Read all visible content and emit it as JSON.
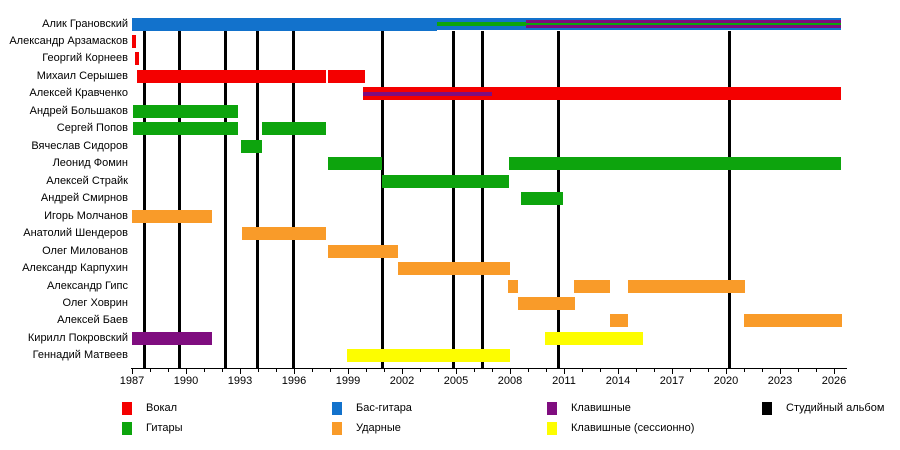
{
  "chart_data": {
    "type": "timeline",
    "title": "",
    "x_axis": {
      "min": 1987,
      "max": 2026.6,
      "major_ticks": [
        1987,
        1990,
        1993,
        1996,
        1999,
        2002,
        2005,
        2008,
        2011,
        2014,
        2017,
        2020,
        2023,
        2026
      ],
      "minor_tick_interval": 1,
      "minor_tick_last": 2026
    },
    "colors": {
      "vocals": "#f40000",
      "guitars": "#0da40d",
      "bass": "#1272cc",
      "drums": "#f99b29",
      "keyboards": "#7f0d7f",
      "keyboards_session": "#fdfd00",
      "album": "#000000"
    },
    "albums": [
      1987.72,
      1989.63,
      1992.17,
      1993.98,
      1995.96,
      2000.89,
      2004.85,
      2006.48,
      2010.67,
      2020.17
    ],
    "members": [
      {
        "name": "Алик Грановский",
        "segments": [
          {
            "start": 1987.0,
            "end": 2003.95,
            "stripes": [
              "bass"
            ]
          },
          {
            "start": 2003.95,
            "end": 2008.9,
            "stripes": [
              "bass",
              "guitars",
              "bass"
            ]
          },
          {
            "start": 2008.9,
            "end": 2026.4,
            "stripes": [
              "bass",
              "keyboards",
              "guitars",
              "keyboards",
              "bass"
            ]
          }
        ]
      },
      {
        "name": "Александр Арзамасков",
        "segments": [
          {
            "start": 1987.0,
            "end": 1987.22,
            "stripes": [
              "vocals"
            ]
          }
        ]
      },
      {
        "name": "Георгий Корнеев",
        "segments": [
          {
            "start": 1987.15,
            "end": 1987.38,
            "stripes": [
              "vocals"
            ]
          }
        ]
      },
      {
        "name": "Михаил Серышев",
        "segments": [
          {
            "start": 1987.3,
            "end": 1997.76,
            "stripes": [
              "vocals"
            ]
          },
          {
            "start": 1997.91,
            "end": 1999.94,
            "stripes": [
              "vocals"
            ]
          }
        ]
      },
      {
        "name": "Алексей Кравченко",
        "segments": [
          {
            "start": 1999.82,
            "end": 2006.98,
            "stripes": [
              "vocals",
              "keyboards",
              "vocals"
            ]
          },
          {
            "start": 2006.98,
            "end": 2026.4,
            "stripes": [
              "vocals"
            ]
          }
        ]
      },
      {
        "name": "Андрей Большаков",
        "segments": [
          {
            "start": 1987.03,
            "end": 1992.9,
            "stripes": [
              "guitars"
            ]
          }
        ]
      },
      {
        "name": "Сергей Попов",
        "segments": [
          {
            "start": 1987.05,
            "end": 1992.9,
            "stripes": [
              "guitars"
            ]
          },
          {
            "start": 1994.2,
            "end": 1997.8,
            "stripes": [
              "guitars"
            ]
          }
        ]
      },
      {
        "name": "Вячеслав Сидоров",
        "segments": [
          {
            "start": 1993.06,
            "end": 1994.2,
            "stripes": [
              "guitars"
            ]
          }
        ]
      },
      {
        "name": "Леонид Фомин",
        "segments": [
          {
            "start": 1997.91,
            "end": 2000.89,
            "stripes": [
              "guitars"
            ]
          },
          {
            "start": 2007.96,
            "end": 2026.37,
            "stripes": [
              "guitars"
            ]
          }
        ]
      },
      {
        "name": "Алексей Страйк",
        "segments": [
          {
            "start": 2000.89,
            "end": 2007.96,
            "stripes": [
              "guitars"
            ]
          }
        ]
      },
      {
        "name": "Андрей Смирнов",
        "segments": [
          {
            "start": 2008.6,
            "end": 2010.96,
            "stripes": [
              "guitars"
            ]
          }
        ]
      },
      {
        "name": "Игорь Молчанов",
        "segments": [
          {
            "start": 1987.0,
            "end": 1991.43,
            "stripes": [
              "drums"
            ]
          }
        ]
      },
      {
        "name": "Анатолий Шендеров",
        "segments": [
          {
            "start": 1993.11,
            "end": 1997.76,
            "stripes": [
              "drums"
            ]
          }
        ]
      },
      {
        "name": "Олег Милованов",
        "segments": [
          {
            "start": 1997.91,
            "end": 2001.76,
            "stripes": [
              "drums"
            ]
          }
        ]
      },
      {
        "name": "Александр Карпухин",
        "segments": [
          {
            "start": 2001.76,
            "end": 2008.0,
            "stripes": [
              "drums"
            ]
          }
        ]
      },
      {
        "name": "Александр Гипс",
        "segments": [
          {
            "start": 2007.91,
            "end": 2008.46,
            "stripes": [
              "drums"
            ]
          },
          {
            "start": 2011.56,
            "end": 2013.56,
            "stripes": [
              "drums"
            ]
          },
          {
            "start": 2014.57,
            "end": 2021.06,
            "stripes": [
              "drums"
            ]
          }
        ]
      },
      {
        "name": "Олег Ховрин",
        "segments": [
          {
            "start": 2008.46,
            "end": 2011.61,
            "stripes": [
              "drums"
            ]
          }
        ]
      },
      {
        "name": "Алексей Баев",
        "segments": [
          {
            "start": 2013.56,
            "end": 2014.57,
            "stripes": [
              "drums"
            ]
          },
          {
            "start": 2021.0,
            "end": 2026.43,
            "stripes": [
              "drums"
            ]
          }
        ]
      },
      {
        "name": "Кирилл Покровский",
        "segments": [
          {
            "start": 1987.0,
            "end": 1991.43,
            "stripes": [
              "keyboards"
            ]
          },
          {
            "start": 2009.94,
            "end": 2015.41,
            "stripes": [
              "keyboards_session"
            ]
          }
        ]
      },
      {
        "name": "Геннадий Матвеев",
        "segments": [
          {
            "start": 1998.93,
            "end": 2008.0,
            "stripes": [
              "keyboards_session"
            ]
          }
        ]
      }
    ],
    "legend": [
      {
        "label": "Вокал",
        "color_key": "vocals",
        "col": 0,
        "row": 0
      },
      {
        "label": "Гитары",
        "color_key": "guitars",
        "col": 0,
        "row": 1
      },
      {
        "label": "Бас-гитара",
        "color_key": "bass",
        "col": 1,
        "row": 0
      },
      {
        "label": "Ударные",
        "color_key": "drums",
        "col": 1,
        "row": 1
      },
      {
        "label": "Клавишные",
        "color_key": "keyboards",
        "col": 2,
        "row": 0
      },
      {
        "label": "Клавишные (сессионно)",
        "color_key": "keyboards_session",
        "col": 2,
        "row": 1
      },
      {
        "label": "Студийный альбом",
        "color_key": "album",
        "col": 3,
        "row": 0
      }
    ],
    "legend_position": "bottom",
    "grid": "off"
  }
}
